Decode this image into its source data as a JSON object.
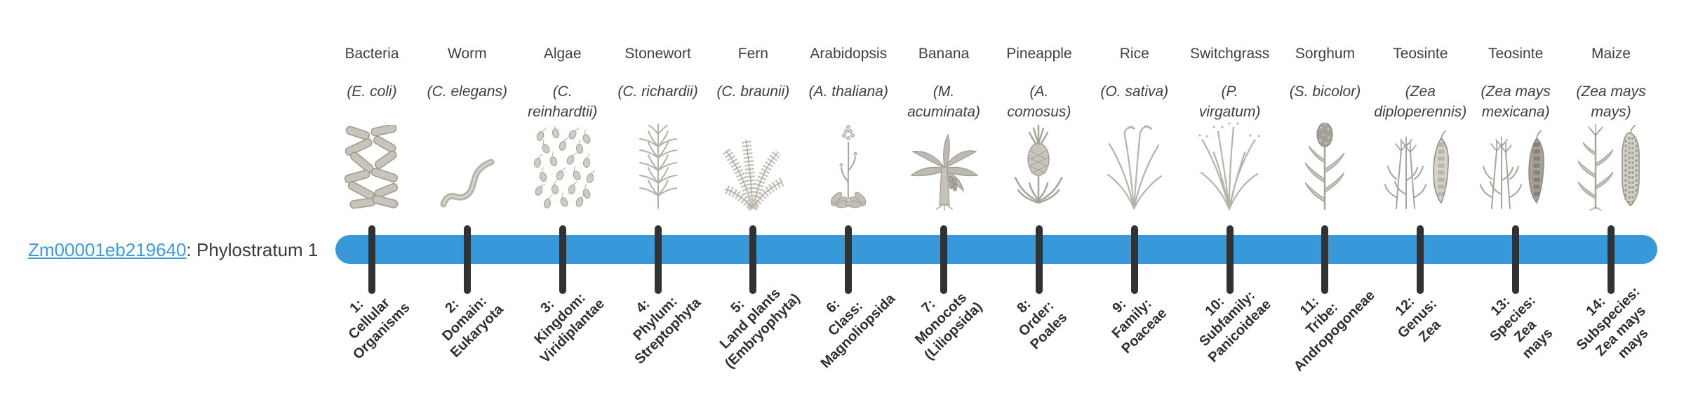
{
  "gene_label": {
    "gene_id": "Zm00001eb219640",
    "annotation": ": Phylostratum 1",
    "link_color": "#3b9ae1"
  },
  "timeline": {
    "bar_color": "#3899da",
    "tick_color": "#303234",
    "num_strata": 14
  },
  "taxa": [
    {
      "number": 1,
      "common_name": "Bacteria",
      "species": "(E. coli)",
      "icon": "bacteria-icon",
      "stratum_label": "1:\nCellular\nOrganisms"
    },
    {
      "number": 2,
      "common_name": "Worm",
      "species": "(C. elegans)",
      "icon": "worm-icon",
      "stratum_label": "2:\nDomain:\nEukaryota"
    },
    {
      "number": 3,
      "common_name": "Algae",
      "species": "(C.\nreinhardtii)",
      "icon": "algae-icon",
      "stratum_label": "3:\nKingdom:\nViridiplantae"
    },
    {
      "number": 4,
      "common_name": "Stonewort",
      "species": "(C. richardii)",
      "icon": "stonewort-icon",
      "stratum_label": "4:\nPhylum:\nStreptophyta"
    },
    {
      "number": 5,
      "common_name": "Fern",
      "species": "(C. braunii)",
      "icon": "fern-icon",
      "stratum_label": "5:\nLand plants\n(Embryophyta)"
    },
    {
      "number": 6,
      "common_name": "Arabidopsis",
      "species": "(A. thaliana)",
      "icon": "arabidopsis-icon",
      "stratum_label": "6:\nClass:\nMagnoliopsida"
    },
    {
      "number": 7,
      "common_name": "Banana",
      "species": "(M.\nacuminata)",
      "icon": "banana-icon",
      "stratum_label": "7:\nMonocots\n(Liliopsida)"
    },
    {
      "number": 8,
      "common_name": "Pineapple",
      "species": "(A.\ncomosus)",
      "icon": "pineapple-icon",
      "stratum_label": "8:\nOrder:\nPoales"
    },
    {
      "number": 9,
      "common_name": "Rice",
      "species": "(O. sativa)",
      "icon": "rice-icon",
      "stratum_label": "9:\nFamily:\nPoaceae"
    },
    {
      "number": 10,
      "common_name": "Switchgrass",
      "species": "(P.\nvirgatum)",
      "icon": "switchgrass-icon",
      "stratum_label": "10:\nSubfamily:\nPanicoideae"
    },
    {
      "number": 11,
      "common_name": "Sorghum",
      "species": "(S. bicolor)",
      "icon": "sorghum-icon",
      "stratum_label": "11:\nTribe:\nAndropogoneae"
    },
    {
      "number": 12,
      "common_name": "Teosinte",
      "species": "(Zea\ndiploperennis)",
      "icon": "teosinte-icon",
      "stratum_label": "12:\nGenus:\nZea"
    },
    {
      "number": 13,
      "common_name": "Teosinte",
      "species": "(Zea mays\nmexicana)",
      "icon": "teosinte-dark-icon",
      "stratum_label": "13:\nSpecies:\nZea\nmays"
    },
    {
      "number": 14,
      "common_name": "Maize",
      "species": "(Zea mays\nmays)",
      "icon": "maize-icon",
      "stratum_label": "14:\nSubspecies:\nZea mays\nmays"
    }
  ]
}
